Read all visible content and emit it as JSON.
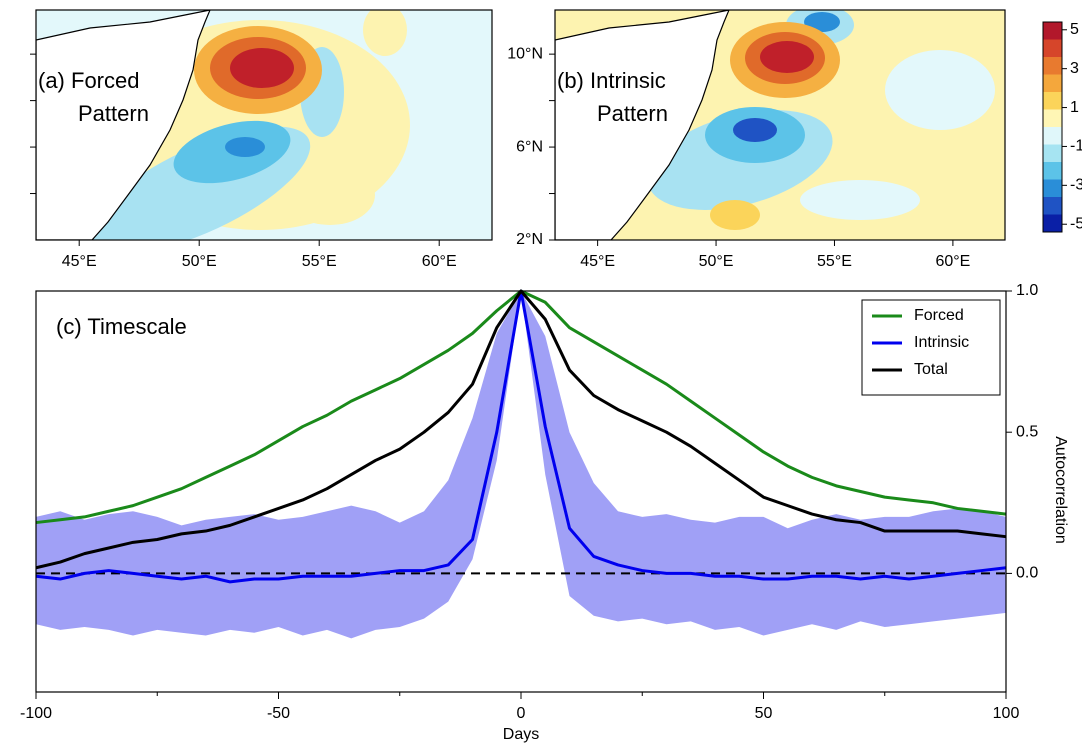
{
  "chart_data": [
    {
      "type": "map",
      "annotation": [
        "(a) Forced",
        "Pattern"
      ],
      "xlim": [
        43.2,
        62.2
      ],
      "ylim": [
        2,
        11.9
      ],
      "xticks": [
        {
          "value": 45,
          "label": "45°E"
        },
        {
          "value": 50,
          "label": "50°E"
        },
        {
          "value": 55,
          "label": "55°E"
        },
        {
          "value": 60,
          "label": "60°E"
        }
      ],
      "yticks": [
        {
          "value": 4,
          "label": null
        },
        {
          "value": 6,
          "label": null
        },
        {
          "value": 8,
          "label": null
        },
        {
          "value": 10,
          "label": null
        }
      ]
    },
    {
      "type": "map",
      "annotation": [
        "(b) Intrinsic",
        "Pattern"
      ],
      "xlim": [
        43.2,
        62.2
      ],
      "ylim": [
        2,
        11.9
      ],
      "xticks": [
        {
          "value": 45,
          "label": "45°E"
        },
        {
          "value": 50,
          "label": "50°E"
        },
        {
          "value": 55,
          "label": "55°E"
        },
        {
          "value": 60,
          "label": "60°E"
        }
      ],
      "yticks": [
        {
          "value": 2,
          "label": "2°N"
        },
        {
          "value": 4,
          "label": null
        },
        {
          "value": 6,
          "label": "6°N"
        },
        {
          "value": 8,
          "label": null
        },
        {
          "value": 10,
          "label": "10°N"
        }
      ]
    },
    {
      "type": "colorbar",
      "clim": [
        -5.4,
        5.4
      ],
      "ticks": [
        5,
        3,
        1,
        -1,
        -3,
        -5
      ],
      "colors": [
        "#b2182b",
        "#d6452a",
        "#e87a2f",
        "#f4a73c",
        "#fbd45a",
        "#fff6b5",
        "#e0f7fa",
        "#a6e4f2",
        "#5cc3e8",
        "#2a8ed8",
        "#1f53c4",
        "#0a1fa6"
      ]
    },
    {
      "type": "line",
      "annotation": "(c) Timescale",
      "xlabel": "Days",
      "ylabel": "Autocorrelation",
      "xlim": [
        -100,
        100
      ],
      "ylim": [
        -0.42,
        1.0
      ],
      "xticks": [
        -100,
        -50,
        0,
        50,
        100
      ],
      "minor_xticks": [
        -75,
        -25,
        25,
        75
      ],
      "yticks": [
        {
          "value": 0,
          "label": "0.0"
        },
        0.5,
        {
          "value": 1,
          "label": "1.0"
        }
      ],
      "reference_line": 0,
      "x": [
        -100,
        -95,
        -90,
        -85,
        -80,
        -75,
        -70,
        -65,
        -60,
        -55,
        -50,
        -45,
        -40,
        -35,
        -30,
        -25,
        -20,
        -15,
        -10,
        -5,
        0,
        5,
        10,
        15,
        20,
        25,
        30,
        35,
        40,
        45,
        50,
        55,
        60,
        65,
        70,
        75,
        80,
        85,
        90,
        95,
        100
      ],
      "band": {
        "color": "#a0a0f6",
        "upper": [
          0.2,
          0.22,
          0.19,
          0.21,
          0.22,
          0.2,
          0.17,
          0.19,
          0.2,
          0.21,
          0.19,
          0.2,
          0.22,
          0.24,
          0.22,
          0.18,
          0.22,
          0.33,
          0.55,
          0.85,
          1.0,
          0.84,
          0.5,
          0.32,
          0.22,
          0.2,
          0.21,
          0.19,
          0.18,
          0.2,
          0.2,
          0.16,
          0.19,
          0.21,
          0.19,
          0.2,
          0.2,
          0.22,
          0.23,
          0.22,
          0.2
        ],
        "lower": [
          -0.18,
          -0.2,
          -0.19,
          -0.2,
          -0.22,
          -0.2,
          -0.21,
          -0.22,
          -0.2,
          -0.21,
          -0.19,
          -0.22,
          -0.2,
          -0.23,
          -0.2,
          -0.19,
          -0.16,
          -0.1,
          0.05,
          0.4,
          1.0,
          0.35,
          -0.08,
          -0.15,
          -0.17,
          -0.16,
          -0.18,
          -0.17,
          -0.2,
          -0.19,
          -0.22,
          -0.2,
          -0.18,
          -0.2,
          -0.17,
          -0.19,
          -0.18,
          -0.17,
          -0.16,
          -0.15,
          -0.14
        ]
      },
      "series": [
        {
          "name": "Forced",
          "color": "#1a8a1a",
          "values": [
            0.18,
            0.19,
            0.2,
            0.22,
            0.24,
            0.27,
            0.3,
            0.34,
            0.38,
            0.42,
            0.47,
            0.52,
            0.56,
            0.61,
            0.65,
            0.69,
            0.74,
            0.79,
            0.85,
            0.93,
            1.0,
            0.96,
            0.87,
            0.82,
            0.77,
            0.72,
            0.67,
            0.61,
            0.55,
            0.49,
            0.43,
            0.38,
            0.34,
            0.31,
            0.29,
            0.27,
            0.26,
            0.25,
            0.23,
            0.22,
            0.21
          ]
        },
        {
          "name": "Intrinsic",
          "color": "#0000ee",
          "values": [
            -0.01,
            -0.02,
            0.0,
            0.01,
            0.0,
            -0.01,
            -0.02,
            -0.01,
            -0.03,
            -0.02,
            -0.02,
            -0.01,
            -0.01,
            -0.01,
            0.0,
            0.01,
            0.01,
            0.03,
            0.12,
            0.5,
            1.0,
            0.52,
            0.16,
            0.06,
            0.03,
            0.01,
            0.0,
            0.0,
            -0.01,
            -0.01,
            -0.02,
            -0.02,
            -0.01,
            -0.01,
            -0.02,
            -0.01,
            -0.02,
            -0.01,
            0.0,
            0.01,
            0.02
          ]
        },
        {
          "name": "Total",
          "color": "#000000",
          "values": [
            0.02,
            0.04,
            0.07,
            0.09,
            0.11,
            0.12,
            0.14,
            0.15,
            0.17,
            0.2,
            0.23,
            0.26,
            0.3,
            0.35,
            0.4,
            0.44,
            0.5,
            0.57,
            0.67,
            0.87,
            1.0,
            0.9,
            0.72,
            0.63,
            0.58,
            0.54,
            0.5,
            0.45,
            0.39,
            0.33,
            0.27,
            0.24,
            0.21,
            0.19,
            0.18,
            0.15,
            0.15,
            0.15,
            0.15,
            0.14,
            0.13
          ]
        }
      ]
    }
  ]
}
